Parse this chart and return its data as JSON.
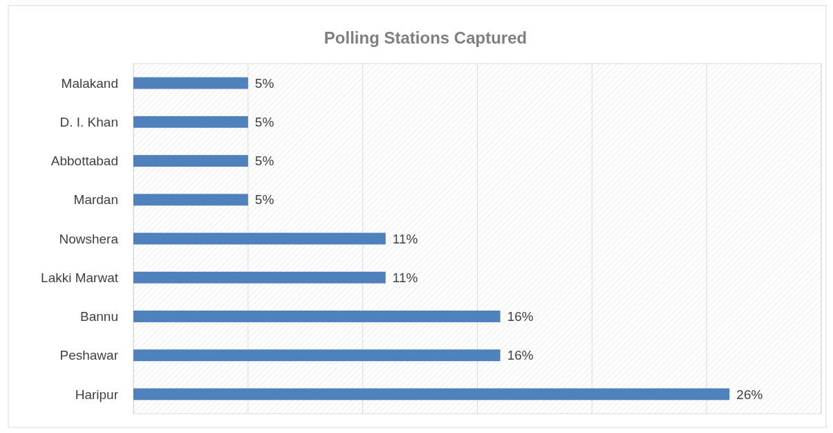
{
  "chart_data": {
    "type": "bar",
    "orientation": "horizontal",
    "title": "Polling Stations Captured",
    "categories": [
      "Malakand",
      "D. I. Khan",
      "Abbottabad",
      "Mardan",
      "Nowshera",
      "Lakki Marwat",
      "Bannu",
      "Peshawar",
      "Haripur"
    ],
    "values": [
      5,
      5,
      5,
      5,
      11,
      11,
      16,
      16,
      26
    ],
    "value_labels": [
      "5%",
      "5%",
      "5%",
      "5%",
      "11%",
      "11%",
      "16%",
      "16%",
      "26%"
    ],
    "color": "#4f81bd",
    "xlim": [
      0,
      30
    ],
    "xticks": [
      {
        "value": 0,
        "label": null
      },
      {
        "value": 5,
        "label": null
      },
      {
        "value": 10,
        "label": null
      },
      {
        "value": 15,
        "label": null
      },
      {
        "value": 20,
        "label": null
      },
      {
        "value": 25,
        "label": null
      },
      {
        "value": 30,
        "label": null
      }
    ],
    "tick_labels": "y",
    "grid": "x"
  }
}
